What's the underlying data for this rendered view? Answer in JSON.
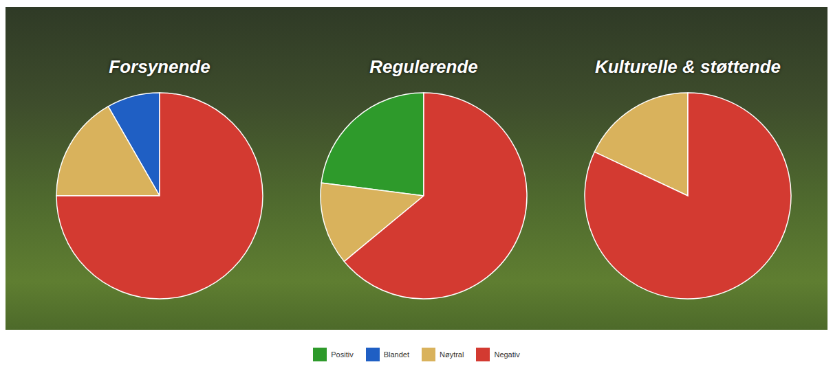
{
  "chart_data": [
    {
      "type": "pie",
      "title": "Forsynende",
      "categories": [
        "Blandet",
        "Nøytral",
        "Negativ"
      ],
      "values": [
        8.3,
        16.7,
        75
      ],
      "colors": [
        "#1f5fc4",
        "#d9b25c",
        "#d33a31"
      ]
    },
    {
      "type": "pie",
      "title": "Regulerende",
      "categories": [
        "Positiv",
        "Nøytral",
        "Negativ"
      ],
      "values": [
        23,
        13,
        64
      ],
      "colors": [
        "#2e9a2b",
        "#d9b25c",
        "#d33a31"
      ]
    },
    {
      "type": "pie",
      "title": "Kulturelle & støttende",
      "categories": [
        "Nøytral",
        "Negativ"
      ],
      "values": [
        18,
        82
      ],
      "colors": [
        "#d9b25c",
        "#d33a31"
      ]
    }
  ],
  "legend": "bottom",
  "legend_items": [
    {
      "name": "Positiv",
      "color": "#2e9a2b"
    },
    {
      "name": "Blandet",
      "color": "#1f5fc4"
    },
    {
      "name": "Nøytral",
      "color": "#d9b25c"
    },
    {
      "name": "Negativ",
      "color": "#d33a31"
    }
  ]
}
